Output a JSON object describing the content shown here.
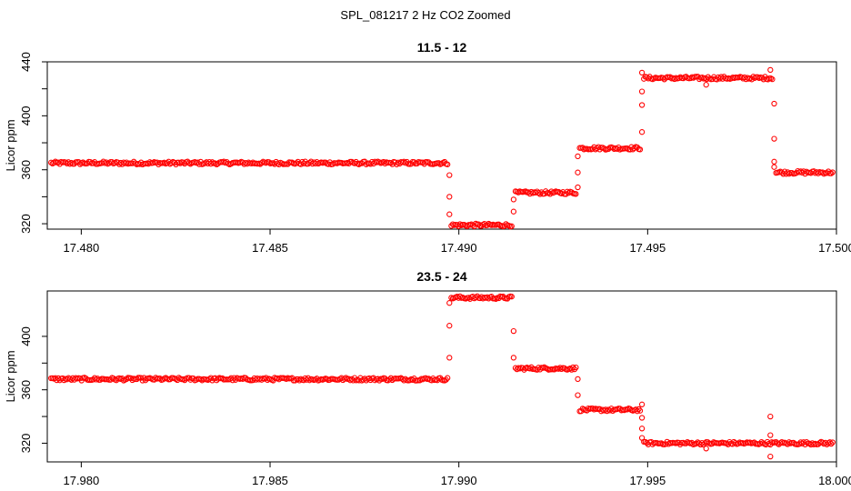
{
  "figure": {
    "suptitle": "SPL_081217  2 Hz CO2 Zoomed",
    "marker_color": "#ff0000"
  },
  "chart_data": [
    {
      "type": "scatter",
      "title": "11.5 - 12",
      "xlabel": "",
      "ylabel": "Licor ppm",
      "xlim": [
        17.4791,
        17.5
      ],
      "ylim": [
        316,
        440
      ],
      "xticks": [
        17.48,
        17.485,
        17.49,
        17.495,
        17.5
      ],
      "xtick_labels": [
        "17.480",
        "17.485",
        "17.490",
        "17.495",
        "17.500"
      ],
      "yticks": [
        320,
        360,
        400,
        440
      ],
      "ytick_labels": [
        "320",
        "360",
        "400",
        "440"
      ],
      "marker": "open-circle",
      "segments": [
        {
          "x0": 17.4792,
          "x1": 17.4897,
          "y": 365
        },
        {
          "x0": 17.4898,
          "x1": 17.4914,
          "y": 319
        },
        {
          "x0": 17.4915,
          "x1": 17.4931,
          "y": 343
        },
        {
          "x0": 17.4932,
          "x1": 17.4948,
          "y": 376
        },
        {
          "x0": 17.4949,
          "x1": 17.4983,
          "y": 428
        },
        {
          "x0": 17.4984,
          "x1": 17.4999,
          "y": 358
        }
      ],
      "transition_points": [
        {
          "x": 17.48975,
          "y": 356
        },
        {
          "x": 17.48975,
          "y": 340
        },
        {
          "x": 17.48975,
          "y": 327
        },
        {
          "x": 17.49145,
          "y": 329
        },
        {
          "x": 17.49145,
          "y": 338
        },
        {
          "x": 17.49315,
          "y": 347
        },
        {
          "x": 17.49315,
          "y": 358
        },
        {
          "x": 17.49315,
          "y": 370
        },
        {
          "x": 17.49485,
          "y": 388
        },
        {
          "x": 17.49485,
          "y": 408
        },
        {
          "x": 17.49485,
          "y": 418
        },
        {
          "x": 17.49485,
          "y": 432
        },
        {
          "x": 17.49655,
          "y": 423
        },
        {
          "x": 17.49825,
          "y": 434
        },
        {
          "x": 17.49835,
          "y": 409
        },
        {
          "x": 17.49835,
          "y": 383
        },
        {
          "x": 17.49835,
          "y": 366
        },
        {
          "x": 17.49835,
          "y": 362
        }
      ]
    },
    {
      "type": "scatter",
      "title": "23.5 - 24",
      "xlabel": "",
      "ylabel": "Licor ppm",
      "xlim": [
        17.9791,
        18.0
      ],
      "ylim": [
        306,
        434
      ],
      "xticks": [
        17.98,
        17.985,
        17.99,
        17.995,
        18.0
      ],
      "xtick_labels": [
        "17.980",
        "17.985",
        "17.990",
        "17.995",
        "18.000"
      ],
      "yticks": [
        320,
        360,
        400
      ],
      "ytick_labels": [
        "320",
        "360",
        "400"
      ],
      "marker": "open-circle",
      "segments": [
        {
          "x0": 17.9792,
          "x1": 17.9897,
          "y": 368
        },
        {
          "x0": 17.9898,
          "x1": 17.9914,
          "y": 429
        },
        {
          "x0": 17.9915,
          "x1": 17.9931,
          "y": 376
        },
        {
          "x0": 17.9932,
          "x1": 17.9948,
          "y": 345
        },
        {
          "x0": 17.9949,
          "x1": 17.9999,
          "y": 320
        }
      ],
      "transition_points": [
        {
          "x": 17.98975,
          "y": 384
        },
        {
          "x": 17.98975,
          "y": 408
        },
        {
          "x": 17.98975,
          "y": 425
        },
        {
          "x": 17.99145,
          "y": 404
        },
        {
          "x": 17.99145,
          "y": 384
        },
        {
          "x": 17.99315,
          "y": 368
        },
        {
          "x": 17.99315,
          "y": 356
        },
        {
          "x": 17.99485,
          "y": 349
        },
        {
          "x": 17.99485,
          "y": 339
        },
        {
          "x": 17.99485,
          "y": 331
        },
        {
          "x": 17.99485,
          "y": 324
        },
        {
          "x": 17.99655,
          "y": 316
        },
        {
          "x": 17.99825,
          "y": 340
        },
        {
          "x": 17.99825,
          "y": 326
        },
        {
          "x": 17.99825,
          "y": 310
        }
      ]
    }
  ]
}
